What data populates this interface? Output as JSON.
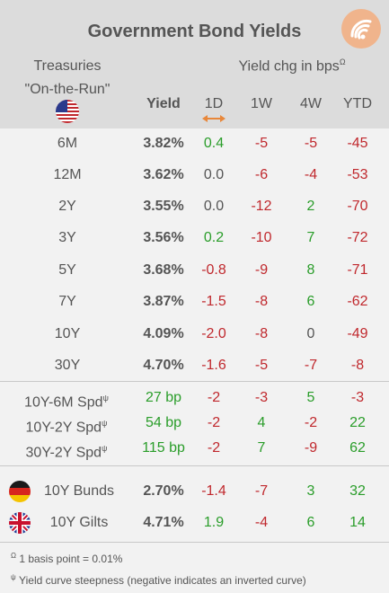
{
  "title": "Government Bond Yields",
  "header": {
    "left_line1": "Treasuries",
    "left_line2": "\"On-the-Run\"",
    "yield_label": "Yield",
    "change_label": "Yield chg in bps",
    "change_sup": "Ω",
    "columns": [
      "1D",
      "1W",
      "4W",
      "YTD"
    ]
  },
  "treasuries": [
    {
      "name": "6M",
      "yield": "3.82%",
      "d1": "0.4",
      "w1": "-5",
      "w4": "-5",
      "ytd": "-45"
    },
    {
      "name": "12M",
      "yield": "3.62%",
      "d1": "0.0",
      "w1": "-6",
      "w4": "-4",
      "ytd": "-53"
    },
    {
      "name": "2Y",
      "yield": "3.55%",
      "d1": "0.0",
      "w1": "-12",
      "w4": "2",
      "ytd": "-70"
    },
    {
      "name": "3Y",
      "yield": "3.56%",
      "d1": "0.2",
      "w1": "-10",
      "w4": "7",
      "ytd": "-72"
    },
    {
      "name": "5Y",
      "yield": "3.68%",
      "d1": "-0.8",
      "w1": "-9",
      "w4": "8",
      "ytd": "-71"
    },
    {
      "name": "7Y",
      "yield": "3.87%",
      "d1": "-1.5",
      "w1": "-8",
      "w4": "6",
      "ytd": "-62"
    },
    {
      "name": "10Y",
      "yield": "4.09%",
      "d1": "-2.0",
      "w1": "-8",
      "w4": "0",
      "ytd": "-49"
    },
    {
      "name": "30Y",
      "yield": "4.70%",
      "d1": "-1.6",
      "w1": "-5",
      "w4": "-7",
      "ytd": "-8"
    }
  ],
  "spreads": [
    {
      "name": "10Y-6M Spd",
      "sup": "ψ",
      "yield": "27 bp",
      "d1": "-2",
      "w1": "-3",
      "w4": "5",
      "ytd": "-3"
    },
    {
      "name": "10Y-2Y Spd",
      "sup": "ψ",
      "yield": "54 bp",
      "d1": "-2",
      "w1": "4",
      "w4": "-2",
      "ytd": "22"
    },
    {
      "name": "30Y-2Y Spd",
      "sup": "ψ",
      "yield": "115 bp",
      "d1": "-2",
      "w1": "7",
      "w4": "-9",
      "ytd": "62"
    }
  ],
  "foreign": [
    {
      "name": "10Y Bunds",
      "flag": "germany-flag-icon",
      "yield": "2.70%",
      "d1": "-1.4",
      "w1": "-7",
      "w4": "3",
      "ytd": "32"
    },
    {
      "name": "10Y Gilts",
      "flag": "uk-flag-icon",
      "yield": "4.71%",
      "d1": "1.9",
      "w1": "-4",
      "w4": "6",
      "ytd": "14"
    }
  ],
  "footnotes": {
    "note1_sup": "Ω",
    "note1": "1 basis point = 0.01%",
    "note2_sup": "ψ",
    "note2": "Yield curve steepness (negative indicates an inverted curve)"
  },
  "colors": {
    "positive": "#2a9d2a",
    "negative": "#c0282d",
    "neutral": "#555555",
    "header_bg": "#dcdcdc",
    "body_bg": "#f2f2f2",
    "accent": "#e8873a"
  },
  "icons": {
    "logo": "wifi-logo-icon",
    "us_flag": "us-flag-icon",
    "sort_arrow": "left-right-arrow-icon"
  }
}
